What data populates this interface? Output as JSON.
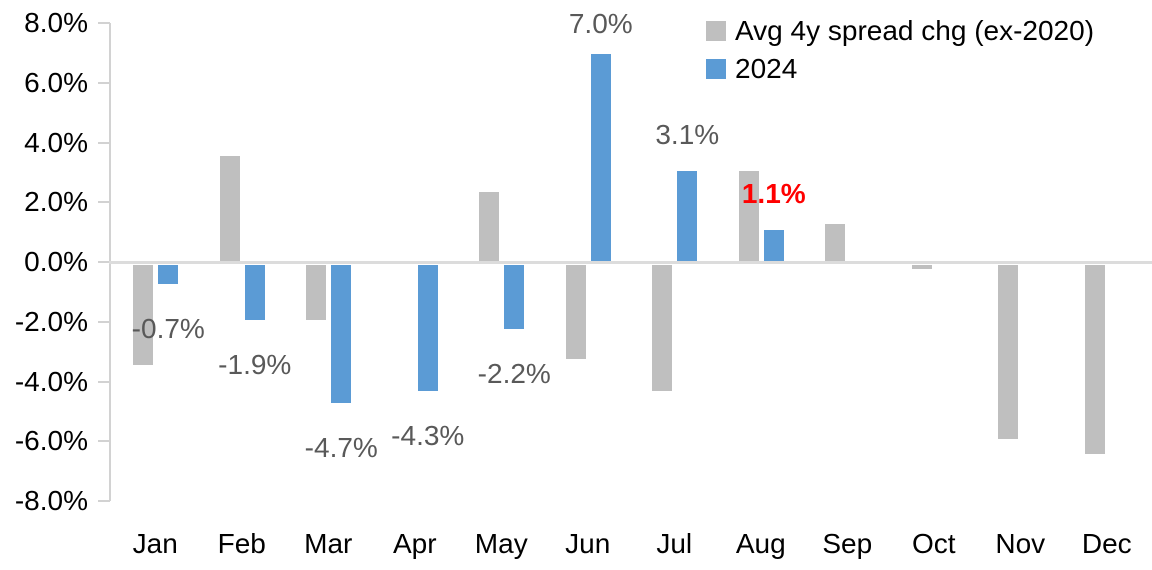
{
  "chart_data": {
    "type": "bar",
    "title": "",
    "categories": [
      "Jan",
      "Feb",
      "Mar",
      "Apr",
      "May",
      "Jun",
      "Jul",
      "Aug",
      "Sep",
      "Oct",
      "Nov",
      "Dec"
    ],
    "series": [
      {
        "name": "Avg 4y spread chg (ex-2020)",
        "color": "#BFBFBF",
        "values": [
          -3.4,
          3.6,
          -1.9,
          0.0,
          2.4,
          -3.2,
          -4.3,
          3.1,
          1.3,
          -0.2,
          -5.9,
          -6.4
        ]
      },
      {
        "name": "2024",
        "color": "#5B9BD5",
        "values": [
          -0.7,
          -1.9,
          -4.7,
          -4.3,
          -2.2,
          7.0,
          3.1,
          1.1,
          null,
          null,
          null,
          null
        ]
      }
    ],
    "data_labels": [
      {
        "category": "Jan",
        "series": "2024",
        "text": "-0.7%",
        "color": "#595959",
        "bold": false
      },
      {
        "category": "Feb",
        "series": "2024",
        "text": "-1.9%",
        "color": "#595959",
        "bold": false
      },
      {
        "category": "Mar",
        "series": "2024",
        "text": "-4.7%",
        "color": "#595959",
        "bold": false
      },
      {
        "category": "Apr",
        "series": "2024",
        "text": "-4.3%",
        "color": "#595959",
        "bold": false
      },
      {
        "category": "May",
        "series": "2024",
        "text": "-2.2%",
        "color": "#595959",
        "bold": false
      },
      {
        "category": "Jun",
        "series": "2024",
        "text": "7.0%",
        "color": "#595959",
        "bold": false
      },
      {
        "category": "Jul",
        "series": "2024",
        "text": "3.1%",
        "color": "#595959",
        "bold": false
      },
      {
        "category": "Aug",
        "series": "2024",
        "text": "1.1%",
        "color": "#FF0000",
        "bold": true
      }
    ],
    "y_axis": {
      "ticks": [
        "8.0%",
        "6.0%",
        "4.0%",
        "2.0%",
        "0.0%",
        "-2.0%",
        "-4.0%",
        "-6.0%",
        "-8.0%"
      ],
      "min": -8,
      "max": 8,
      "step": 2
    },
    "legend": {
      "position": "top-right",
      "entries": [
        "Avg 4y spread chg (ex-2020)",
        "2024"
      ]
    },
    "grid": false,
    "colors": {
      "axis_line": "#D2D2D2",
      "zero_line": "#DCDCDC",
      "data_label_default": "#595959",
      "data_label_highlight": "#FF0000",
      "series_avg": "#BFBFBF",
      "series_2024": "#5B9BD5"
    }
  }
}
